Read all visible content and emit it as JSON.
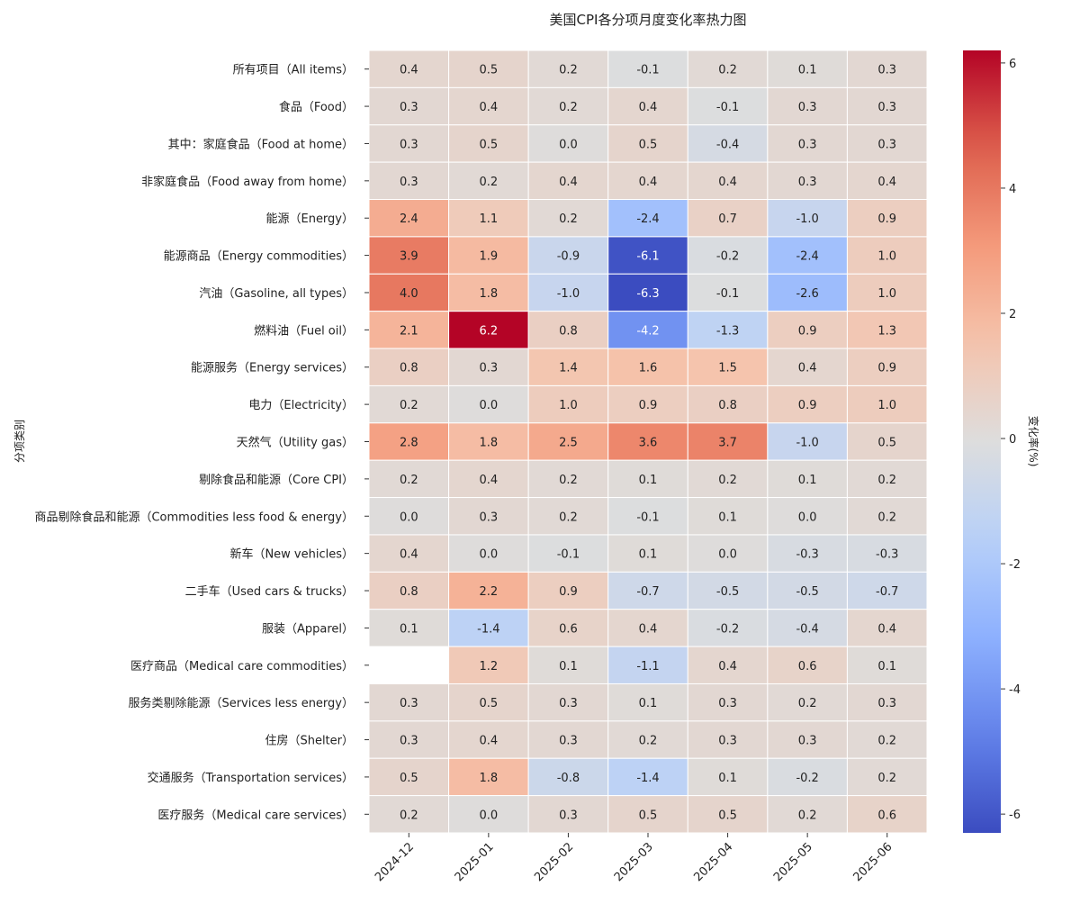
{
  "chart_data": {
    "type": "heatmap",
    "title": "美国CPI各分项月度变化率热力图",
    "xlabel": "",
    "ylabel": "分项类别",
    "colorbar_label": "变化率(%)",
    "colormap": "coolwarm",
    "vmin": -6.3,
    "vmax": 6.2,
    "colorbar_ticks": [
      -6,
      -4,
      -2,
      0,
      2,
      4,
      6
    ],
    "x": [
      "2024-12",
      "2025-01",
      "2025-02",
      "2025-03",
      "2025-04",
      "2025-05",
      "2025-06"
    ],
    "y": [
      "所有项目（All items）",
      "食品（Food）",
      "其中：家庭食品（Food at home）",
      "非家庭食品（Food away from home）",
      "能源（Energy）",
      "能源商品（Energy commodities）",
      "汽油（Gasoline, all types）",
      "燃料油（Fuel oil）",
      "能源服务（Energy services）",
      "电力（Electricity）",
      "天然气（Utility gas）",
      "剔除食品和能源（Core CPI）",
      "商品剔除食品和能源（Commodities less food & energy）",
      "新车（New vehicles）",
      "二手车（Used cars & trucks）",
      "服装（Apparel）",
      "医疗商品（Medical care commodities）",
      "服务类剔除能源（Services less energy）",
      "住房（Shelter）",
      "交通服务（Transportation services）",
      "医疗服务（Medical care services）"
    ],
    "values": [
      [
        0.4,
        0.5,
        0.2,
        -0.1,
        0.2,
        0.1,
        0.3
      ],
      [
        0.3,
        0.4,
        0.2,
        0.4,
        -0.1,
        0.3,
        0.3
      ],
      [
        0.3,
        0.5,
        0.0,
        0.5,
        -0.4,
        0.3,
        0.3
      ],
      [
        0.3,
        0.2,
        0.4,
        0.4,
        0.4,
        0.3,
        0.4
      ],
      [
        2.4,
        1.1,
        0.2,
        -2.4,
        0.7,
        -1.0,
        0.9
      ],
      [
        3.9,
        1.9,
        -0.9,
        -6.1,
        -0.2,
        -2.4,
        1.0
      ],
      [
        4.0,
        1.8,
        -1.0,
        -6.3,
        -0.1,
        -2.6,
        1.0
      ],
      [
        2.1,
        6.2,
        0.8,
        -4.2,
        -1.3,
        0.9,
        1.3
      ],
      [
        0.8,
        0.3,
        1.4,
        1.6,
        1.5,
        0.4,
        0.9
      ],
      [
        0.2,
        0.0,
        1.0,
        0.9,
        0.8,
        0.9,
        1.0
      ],
      [
        2.8,
        1.8,
        2.5,
        3.6,
        3.7,
        -1.0,
        0.5
      ],
      [
        0.2,
        0.4,
        0.2,
        0.1,
        0.2,
        0.1,
        0.2
      ],
      [
        0.0,
        0.3,
        0.2,
        -0.1,
        0.1,
        0.0,
        0.2
      ],
      [
        0.4,
        0.0,
        -0.1,
        0.1,
        0.0,
        -0.3,
        -0.3
      ],
      [
        0.8,
        2.2,
        0.9,
        -0.7,
        -0.5,
        -0.5,
        -0.7
      ],
      [
        0.1,
        -1.4,
        0.6,
        0.4,
        -0.2,
        -0.4,
        0.4
      ],
      [
        null,
        1.2,
        0.1,
        -1.1,
        0.4,
        0.6,
        0.1
      ],
      [
        0.3,
        0.5,
        0.3,
        0.1,
        0.3,
        0.2,
        0.3
      ],
      [
        0.3,
        0.4,
        0.3,
        0.2,
        0.3,
        0.3,
        0.2
      ],
      [
        0.5,
        1.8,
        -0.8,
        -1.4,
        0.1,
        -0.2,
        0.2
      ],
      [
        0.2,
        0.0,
        0.3,
        0.5,
        0.5,
        0.2,
        0.6
      ]
    ],
    "grid": false,
    "legend": "colorbar-right"
  }
}
